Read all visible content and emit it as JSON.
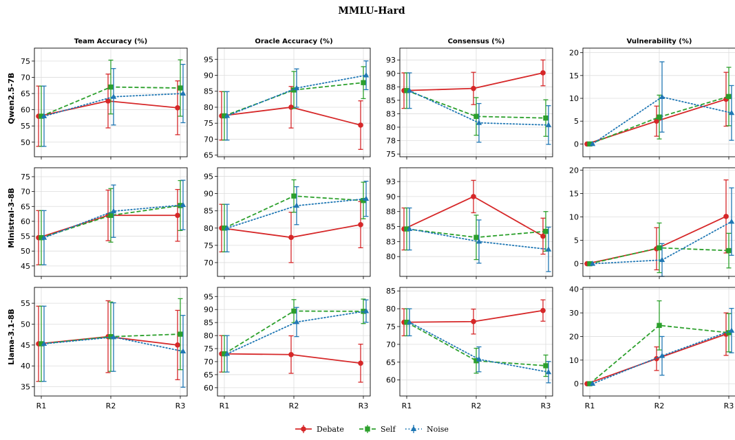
{
  "figure": {
    "title": "MMLU-Hard",
    "column_titles": [
      "Team Accuracy (%)",
      "Oracle Accuracy (%)",
      "Consensus (%)",
      "Vulnerability (%)"
    ],
    "row_labels": [
      "Qwen2.5-7B",
      "Ministral-3-8B",
      "Llama-3.1-8B"
    ],
    "legend": [
      "Debate",
      "Self",
      "Noise"
    ]
  },
  "chart_data": {
    "type": "line",
    "categories": [
      "R1",
      "R2",
      "R3"
    ],
    "series_styles": [
      {
        "name": "Debate",
        "color": "#d62728",
        "dash": "solid",
        "marker": "circle"
      },
      {
        "name": "Self",
        "color": "#2ca02c",
        "dash": "dashed",
        "marker": "square"
      },
      {
        "name": "Noise",
        "color": "#1f77b4",
        "dash": "dotted",
        "marker": "triangle"
      }
    ],
    "grid": true,
    "legend_position": "bottom-center",
    "panels": [
      {
        "row": 0,
        "col": 0,
        "ylim": [
          45.5,
          79
        ],
        "yticks": [
          50,
          55,
          60,
          65,
          70,
          75
        ],
        "series": [
          {
            "name": "Debate",
            "values": [
              58.0,
              62.7,
              60.6
            ],
            "err": [
              9.3,
              8.3,
              8.3
            ]
          },
          {
            "name": "Self",
            "values": [
              58.0,
              67.0,
              66.7
            ],
            "err": [
              9.3,
              8.3,
              8.7
            ]
          },
          {
            "name": "Noise",
            "values": [
              58.0,
              64.0,
              65.0
            ],
            "err": [
              9.3,
              8.7,
              9.0
            ]
          }
        ]
      },
      {
        "row": 0,
        "col": 1,
        "ylim": [
          64.5,
          98.5
        ],
        "yticks": [
          65,
          70,
          75,
          80,
          85,
          90,
          95
        ],
        "series": [
          {
            "name": "Debate",
            "values": [
              77.3,
              80.0,
              74.4
            ],
            "err": [
              7.6,
              6.5,
              7.6
            ]
          },
          {
            "name": "Self",
            "values": [
              77.3,
              85.4,
              87.7
            ],
            "err": [
              7.6,
              5.8,
              5.0
            ]
          },
          {
            "name": "Noise",
            "values": [
              77.3,
              86.0,
              90.0
            ],
            "err": [
              7.6,
              6.0,
              4.5
            ]
          }
        ]
      },
      {
        "row": 0,
        "col": 2,
        "ylim": [
          74.5,
          94.7
        ],
        "yticks": [
          75.0,
          77.5,
          80.0,
          82.5,
          85.0,
          87.5,
          90.0,
          92.5
        ],
        "series": [
          {
            "name": "Debate",
            "values": [
              86.8,
              87.2,
              90.1
            ],
            "err": [
              3.3,
              3.0,
              2.4
            ]
          },
          {
            "name": "Self",
            "values": [
              86.8,
              82.0,
              81.7
            ],
            "err": [
              3.3,
              3.5,
              3.4
            ]
          },
          {
            "name": "Noise",
            "values": [
              86.8,
              80.8,
              80.4
            ],
            "err": [
              3.3,
              3.6,
              3.6
            ]
          }
        ]
      },
      {
        "row": 0,
        "col": 3,
        "ylim": [
          -2.8,
          21
        ],
        "yticks": [
          0,
          5,
          10,
          15,
          20
        ],
        "series": [
          {
            "name": "Debate",
            "values": [
              0.0,
              5.0,
              9.8
            ],
            "err": [
              0.0,
              3.3,
              5.9
            ]
          },
          {
            "name": "Self",
            "values": [
              0.0,
              5.9,
              10.4
            ],
            "err": [
              0.0,
              4.8,
              6.4
            ]
          },
          {
            "name": "Noise",
            "values": [
              0.0,
              10.3,
              6.8
            ],
            "err": [
              0.0,
              7.7,
              6.0
            ]
          }
        ]
      },
      {
        "row": 1,
        "col": 0,
        "ylim": [
          41.5,
          78
        ],
        "yticks": [
          45,
          50,
          55,
          60,
          65,
          70,
          75
        ],
        "series": [
          {
            "name": "Debate",
            "values": [
              54.5,
              62.0,
              62.0
            ],
            "err": [
              9.1,
              8.5,
              8.7
            ]
          },
          {
            "name": "Self",
            "values": [
              54.5,
              62.0,
              65.3
            ],
            "err": [
              9.1,
              9.0,
              8.4
            ]
          },
          {
            "name": "Noise",
            "values": [
              54.5,
              63.4,
              65.5
            ],
            "err": [
              9.1,
              8.8,
              8.3
            ]
          }
        ]
      },
      {
        "row": 1,
        "col": 1,
        "ylim": [
          66,
          97.5
        ],
        "yticks": [
          70,
          75,
          80,
          85,
          90,
          95
        ],
        "series": [
          {
            "name": "Debate",
            "values": [
              80.0,
              77.3,
              81.0
            ],
            "err": [
              6.9,
              7.3,
              6.7
            ]
          },
          {
            "name": "Self",
            "values": [
              80.0,
              89.3,
              88.0
            ],
            "err": [
              6.9,
              4.7,
              5.3
            ]
          },
          {
            "name": "Noise",
            "values": [
              80.0,
              86.5,
              88.5
            ],
            "err": [
              6.9,
              5.5,
              5.1
            ]
          }
        ]
      },
      {
        "row": 1,
        "col": 2,
        "ylim": [
          76.7,
          94.8
        ],
        "yticks": [
          80.0,
          82.5,
          85.0,
          87.5,
          90.0,
          92.5
        ],
        "series": [
          {
            "name": "Debate",
            "values": [
              84.6,
              90.0,
              83.4
            ],
            "err": [
              3.5,
              2.7,
              3.0
            ]
          },
          {
            "name": "Self",
            "values": [
              84.6,
              83.2,
              84.2
            ],
            "err": [
              3.5,
              3.7,
              3.3
            ]
          },
          {
            "name": "Noise",
            "values": [
              84.6,
              82.5,
              81.2
            ],
            "err": [
              3.5,
              3.6,
              3.7
            ]
          }
        ]
      },
      {
        "row": 1,
        "col": 3,
        "ylim": [
          -2.7,
          20.5
        ],
        "yticks": [
          0,
          5,
          10,
          15,
          20
        ],
        "series": [
          {
            "name": "Debate",
            "values": [
              0.0,
              3.2,
              10.1
            ],
            "err": [
              0.0,
              4.5,
              7.8
            ]
          },
          {
            "name": "Self",
            "values": [
              0.0,
              3.4,
              2.8
            ],
            "err": [
              0.0,
              5.3,
              3.7
            ]
          },
          {
            "name": "Noise",
            "values": [
              0.0,
              0.8,
              9.0
            ],
            "err": [
              0.0,
              3.5,
              7.2
            ]
          }
        ]
      },
      {
        "row": 2,
        "col": 0,
        "ylim": [
          32.8,
          58.8
        ],
        "yticks": [
          35,
          40,
          45,
          50,
          55
        ],
        "series": [
          {
            "name": "Debate",
            "values": [
              45.3,
              47.0,
              45.0
            ],
            "err": [
              9.0,
              8.6,
              8.3
            ]
          },
          {
            "name": "Self",
            "values": [
              45.3,
              47.0,
              47.6
            ],
            "err": [
              9.0,
              8.3,
              8.5
            ]
          },
          {
            "name": "Noise",
            "values": [
              45.3,
              46.9,
              43.5
            ],
            "err": [
              9.0,
              8.2,
              8.6
            ]
          }
        ]
      },
      {
        "row": 2,
        "col": 1,
        "ylim": [
          56.8,
          98.5
        ],
        "yticks": [
          60,
          65,
          70,
          75,
          80,
          85,
          90,
          95
        ],
        "series": [
          {
            "name": "Debate",
            "values": [
              73.0,
              72.7,
              69.4
            ],
            "err": [
              7.0,
              7.2,
              7.3
            ]
          },
          {
            "name": "Self",
            "values": [
              73.0,
              89.4,
              89.3
            ],
            "err": [
              7.0,
              4.4,
              4.7
            ]
          },
          {
            "name": "Noise",
            "values": [
              73.0,
              85.2,
              89.4
            ],
            "err": [
              7.0,
              5.6,
              4.3
            ]
          }
        ]
      },
      {
        "row": 2,
        "col": 2,
        "ylim": [
          55.5,
          86
        ],
        "yticks": [
          60,
          65,
          70,
          75,
          80,
          85
        ],
        "series": [
          {
            "name": "Debate",
            "values": [
              76.2,
              76.4,
              79.5
            ],
            "err": [
              3.8,
              3.5,
              3.0
            ]
          },
          {
            "name": "Self",
            "values": [
              76.2,
              65.4,
              64.0
            ],
            "err": [
              3.8,
              3.5,
              3.0
            ]
          },
          {
            "name": "Noise",
            "values": [
              76.2,
              65.8,
              62.2
            ],
            "err": [
              3.8,
              3.5,
              3.0
            ]
          }
        ]
      },
      {
        "row": 2,
        "col": 3,
        "ylim": [
          -5.2,
          40.8
        ],
        "yticks": [
          0,
          10,
          20,
          30,
          40
        ],
        "series": [
          {
            "name": "Debate",
            "values": [
              0.0,
              10.6,
              21.0
            ],
            "err": [
              0.0,
              5.0,
              9.0
            ]
          },
          {
            "name": "Self",
            "values": [
              0.0,
              24.7,
              21.6
            ],
            "err": [
              0.0,
              10.4,
              8.1
            ]
          },
          {
            "name": "Noise",
            "values": [
              0.0,
              11.8,
              22.5
            ],
            "err": [
              0.0,
              8.2,
              9.4
            ]
          }
        ]
      }
    ]
  }
}
